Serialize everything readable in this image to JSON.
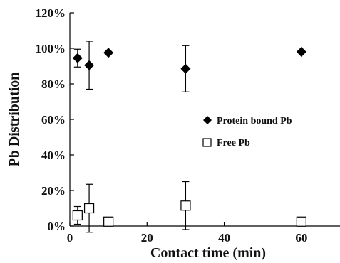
{
  "chart_data": {
    "type": "scatter",
    "title": "",
    "xlabel": "Contact time (min)",
    "ylabel": "Pb Distribution",
    "xlim": [
      0,
      70
    ],
    "ylim": [
      0,
      120
    ],
    "x_ticks": [
      0,
      20,
      40,
      60
    ],
    "x_tick_labels": [
      "0",
      "20",
      "40",
      "60"
    ],
    "y_ticks": [
      0,
      20,
      40,
      60,
      80,
      100,
      120
    ],
    "y_tick_labels": [
      "0%",
      "20%",
      "40%",
      "60%",
      "80%",
      "100%",
      "120%"
    ],
    "grid": false,
    "legend_position": "right-middle",
    "series": [
      {
        "name": "Protein bound Pb",
        "marker": "diamond-filled",
        "color": "#000000",
        "x": [
          2,
          5,
          10,
          30,
          60
        ],
        "y": [
          94.5,
          90.5,
          97.5,
          88.5,
          98
        ],
        "err": [
          5,
          13.5,
          0,
          13,
          0
        ]
      },
      {
        "name": "Free Pb",
        "marker": "square-open",
        "color": "#000000",
        "x": [
          2,
          5,
          10,
          30,
          60
        ],
        "y": [
          6,
          10,
          2.5,
          11.5,
          2.5
        ],
        "err": [
          5,
          13.5,
          0,
          13.5,
          0
        ]
      }
    ]
  }
}
